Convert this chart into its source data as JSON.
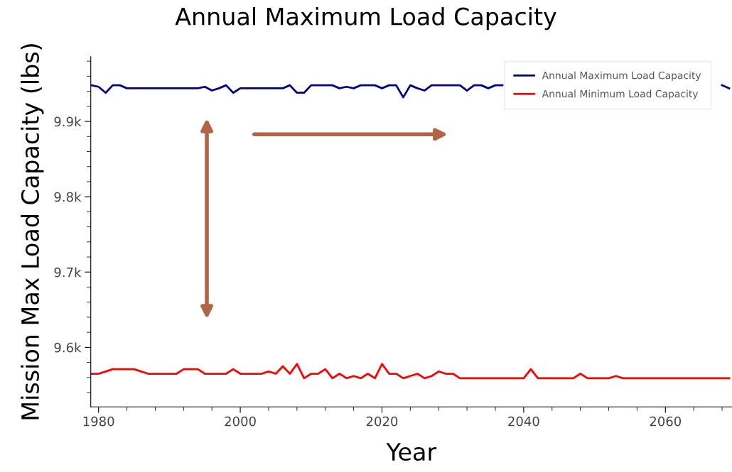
{
  "chart_data": {
    "type": "line",
    "title": "Annual Maximum Load Capacity",
    "xlabel": "Year",
    "ylabel": "Mission Max Load Capacity (lbs)",
    "x": [
      1979,
      1980,
      1981,
      1982,
      1983,
      1984,
      1985,
      1986,
      1987,
      1988,
      1989,
      1990,
      1991,
      1992,
      1993,
      1994,
      1995,
      1996,
      1997,
      1998,
      1999,
      2000,
      2001,
      2002,
      2003,
      2004,
      2005,
      2006,
      2007,
      2008,
      2009,
      2010,
      2011,
      2012,
      2013,
      2014,
      2015,
      2016,
      2017,
      2018,
      2019,
      2020,
      2021,
      2022,
      2023,
      2024,
      2025,
      2026,
      2027,
      2028,
      2029,
      2030,
      2031,
      2032,
      2033,
      2034,
      2035,
      2036,
      2037,
      2038,
      2039,
      2040,
      2041,
      2042,
      2043,
      2044,
      2045,
      2046,
      2047,
      2048,
      2049,
      2050,
      2051,
      2052,
      2053,
      2054,
      2055,
      2056,
      2057,
      2058,
      2059,
      2060,
      2061,
      2062,
      2063,
      2064,
      2065,
      2066,
      2067,
      2068,
      2069
    ],
    "series": [
      {
        "name": "Annual Maximum Load Capacity",
        "color": "#000080",
        "values": [
          9948,
          9946,
          9938,
          9948,
          9948,
          9944,
          9944,
          9944,
          9944,
          9944,
          9944,
          9944,
          9944,
          9944,
          9944,
          9944,
          9946,
          9941,
          9944,
          9948,
          9938,
          9944,
          9944,
          9944,
          9944,
          9944,
          9944,
          9944,
          9948,
          9938,
          9938,
          9948,
          9948,
          9948,
          9948,
          9944,
          9946,
          9944,
          9948,
          9948,
          9948,
          9944,
          9948,
          9948,
          9932,
          9948,
          9944,
          9941,
          9948,
          9948,
          9948,
          9948,
          9948,
          9941,
          9948,
          9948,
          9944,
          9948,
          9948,
          null,
          null,
          null,
          null,
          null,
          null,
          null,
          null,
          null,
          null,
          null,
          null,
          null,
          null,
          null,
          null,
          null,
          null,
          null,
          null,
          null,
          null,
          null,
          null,
          null,
          null,
          null,
          null,
          null,
          null,
          9948,
          9944
        ]
      },
      {
        "name": "Annual Minimum Load Capacity",
        "color": "#ff0000",
        "values": [
          9565,
          9565,
          9568,
          9571,
          9571,
          9571,
          9571,
          9568,
          9565,
          9565,
          9565,
          9565,
          9565,
          9571,
          9571,
          9571,
          9565,
          9565,
          9565,
          9565,
          9571,
          9565,
          9565,
          9565,
          9565,
          9568,
          9565,
          9575,
          9565,
          9578,
          9559,
          9565,
          9565,
          9571,
          9559,
          9565,
          9559,
          9562,
          9559,
          9565,
          9559,
          9578,
          9565,
          9565,
          9559,
          9562,
          9565,
          9559,
          9562,
          9568,
          9565,
          9565,
          9559,
          9559,
          9559,
          9559,
          9559,
          9559,
          9559,
          9559,
          9559,
          9559,
          9571,
          9559,
          9559,
          9559,
          9559,
          9559,
          9559,
          9565,
          9559,
          9559,
          9559,
          9559,
          9562,
          9559,
          9559,
          9559,
          9559,
          9559,
          9559,
          9559,
          9559,
          9559,
          9559,
          9559,
          9559,
          9559,
          9559,
          9559,
          9559
        ]
      }
    ],
    "xlim": [
      1978.9,
      2069.4
    ],
    "xticks": [
      1980,
      2000,
      2020,
      2040,
      2060
    ],
    "ylim": [
      9521,
      9986
    ],
    "yticks": [
      {
        "value": 9600,
        "label": "9.6k"
      },
      {
        "value": 9700,
        "label": "9.7k"
      },
      {
        "value": 9800,
        "label": "9.8k"
      },
      {
        "value": 9900,
        "label": "9.9k"
      }
    ],
    "legend": "top right",
    "grid": false,
    "marker": "none",
    "line_style": "solid"
  }
}
